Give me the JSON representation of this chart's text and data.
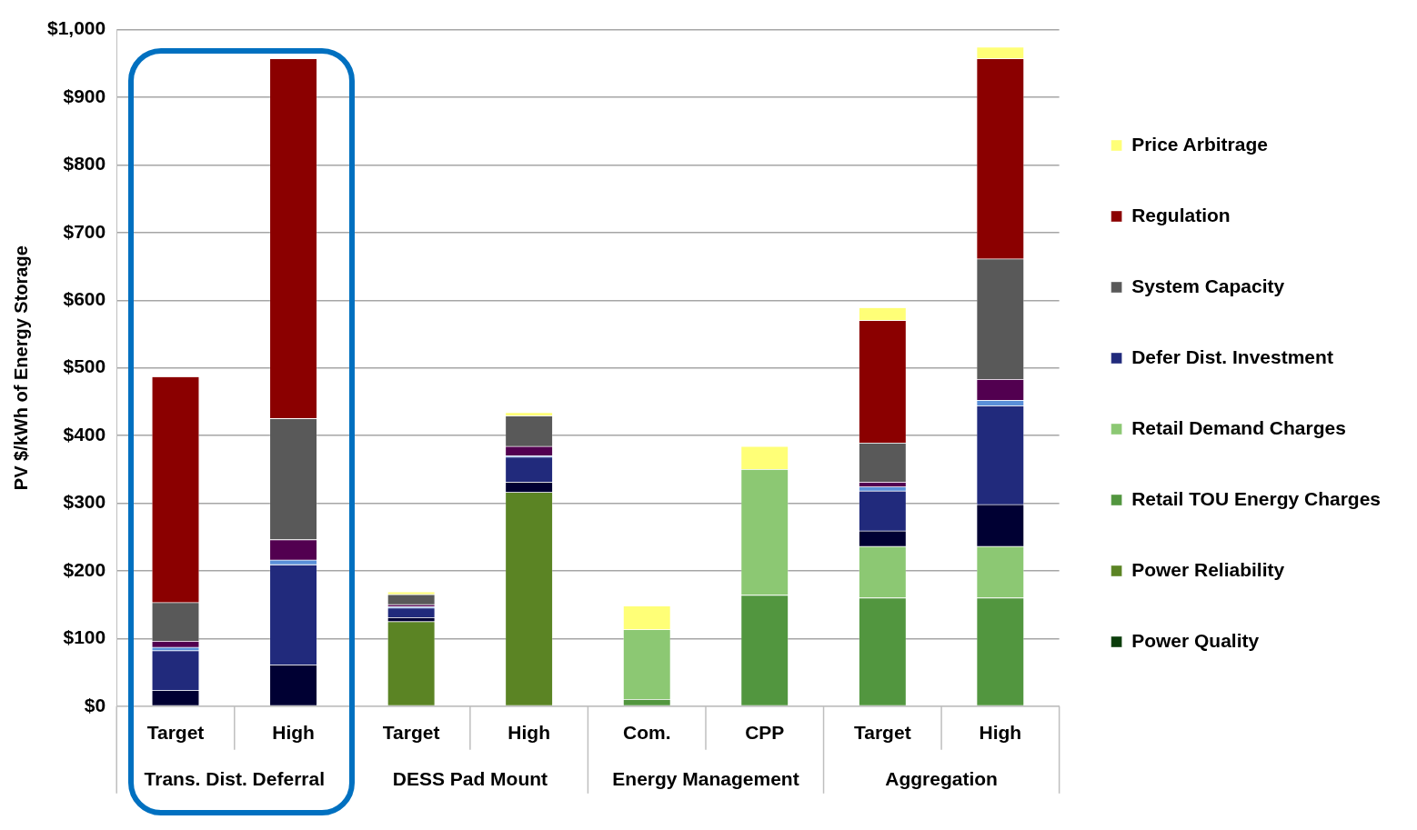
{
  "chart_data": {
    "type": "bar",
    "stacked": true,
    "ylabel": "PV $/kWh of Energy Storage",
    "categories": [
      "Target",
      "High",
      "Target",
      "High",
      "Com.",
      "CPP",
      "Target",
      "High"
    ],
    "annotations": [
      "Trans. Dist. Deferral",
      "DESS Pad Mount",
      "Energy Management",
      "Aggregation"
    ],
    "ylim": [
      0,
      1000
    ],
    "yticks": [
      {
        "value": 0,
        "label": "$0"
      },
      {
        "value": 100,
        "label": "$100"
      },
      {
        "value": 200,
        "label": "$200"
      },
      {
        "value": 300,
        "label": "$300"
      },
      {
        "value": 400,
        "label": "$400"
      },
      {
        "value": 500,
        "label": "$500"
      },
      {
        "value": 600,
        "label": "$600"
      },
      {
        "value": 700,
        "label": "$700"
      },
      {
        "value": 800,
        "label": "$800"
      },
      {
        "value": 900,
        "label": "$900"
      },
      {
        "value": 1000,
        "label": "$1,000"
      }
    ],
    "grid": "y",
    "legend": "right",
    "series": [
      {
        "name": "Power Quality",
        "color": "#0b3d0b",
        "values": [
          0,
          0,
          0,
          0,
          0,
          0,
          0,
          0
        ]
      },
      {
        "name": "Power Reliability",
        "color": "#5b8424",
        "values": [
          0,
          0,
          125,
          316,
          0,
          0,
          0,
          0
        ]
      },
      {
        "name": "Retail TOU Energy Charges",
        "color": "#52963f",
        "values": [
          0,
          0,
          0,
          0,
          10,
          164,
          160,
          160
        ]
      },
      {
        "name": "Retail Demand Charges",
        "color": "#8cc873",
        "values": [
          0,
          0,
          0,
          0,
          103,
          186,
          76,
          76
        ]
      },
      {
        "color": "#000033",
        "values": [
          23,
          61,
          6,
          15,
          0,
          0,
          23,
          62
        ]
      },
      {
        "name": "Defer Dist. Investment",
        "color": "#212a7c",
        "values": [
          59,
          148,
          14,
          37,
          0,
          0,
          59,
          146
        ]
      },
      {
        "color": "#5a8fd8",
        "values": [
          5,
          7,
          2,
          2,
          0,
          0,
          6,
          8
        ]
      },
      {
        "color": "#520050",
        "values": [
          9,
          30,
          3,
          14,
          0,
          0,
          7,
          31
        ]
      },
      {
        "name": "System Capacity",
        "color": "#595959",
        "values": [
          57,
          179,
          15,
          45,
          0,
          0,
          58,
          178
        ]
      },
      {
        "name": "Regulation",
        "color": "#8b0000",
        "values": [
          334,
          532,
          0,
          0,
          0,
          0,
          181,
          296
        ]
      },
      {
        "name": "Price Arbitrage",
        "color": "#ffff77",
        "values": [
          0,
          0,
          4,
          5,
          35,
          34,
          19,
          17
        ]
      }
    ]
  }
}
